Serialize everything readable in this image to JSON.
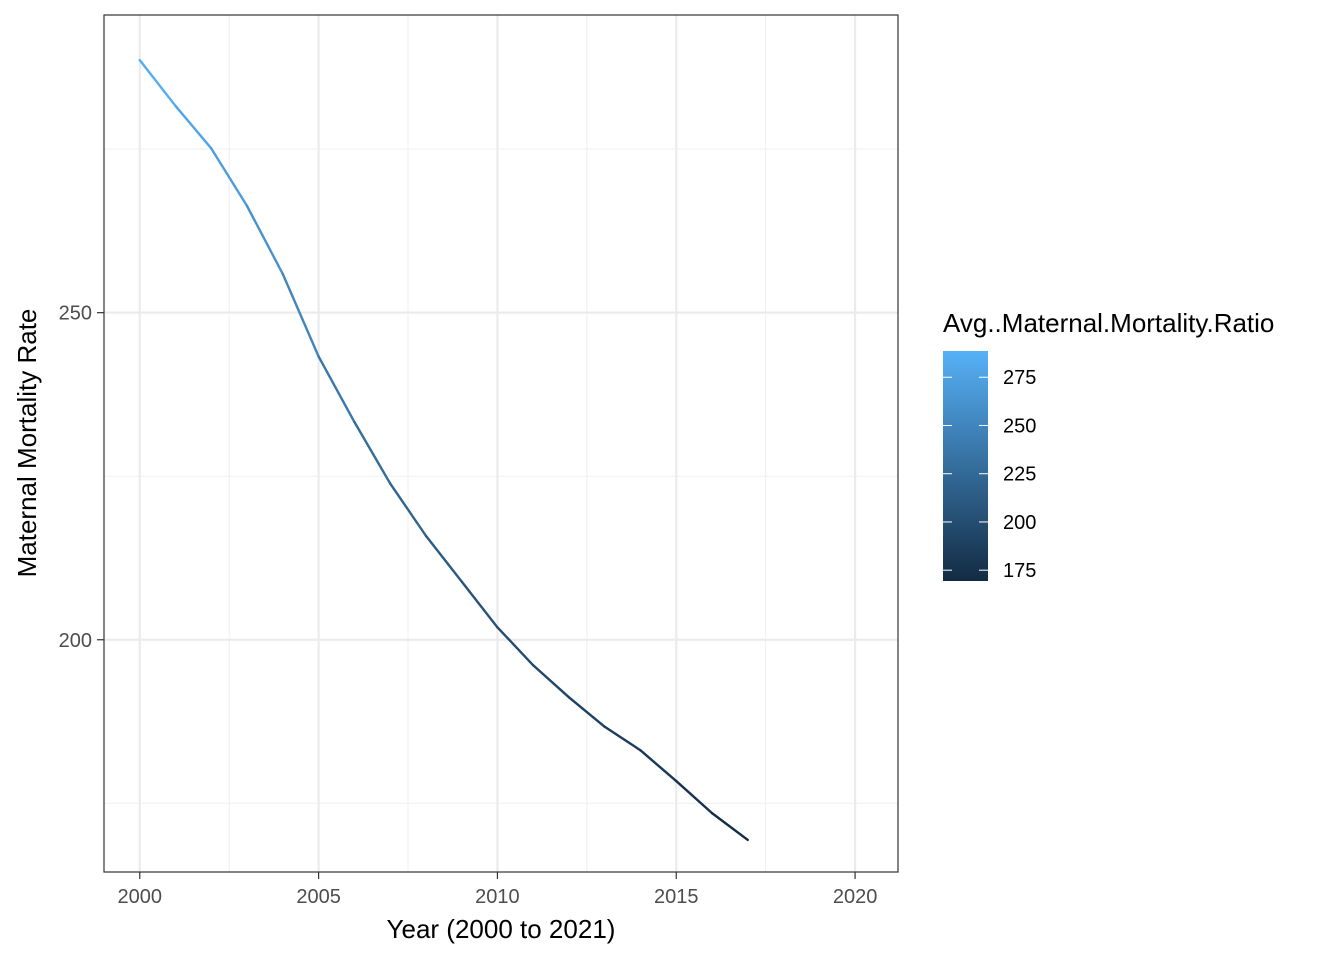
{
  "chart_data": {
    "type": "line",
    "xlabel": "Year (2000 to 2021)",
    "ylabel": "Maternal Mortality Rate",
    "xlim": [
      1999,
      2021.2
    ],
    "ylim": [
      164.5,
      295.5
    ],
    "x_ticks": [
      2000,
      2005,
      2010,
      2015,
      2020
    ],
    "x_tick_labels": [
      "2000",
      "2005",
      "2010",
      "2015",
      "2020"
    ],
    "y_ticks": [
      200,
      250
    ],
    "y_tick_labels": [
      "200",
      "250"
    ],
    "grid": true,
    "series": [
      {
        "x": [
          2000,
          2001,
          2002,
          2003,
          2004,
          2005,
          2006,
          2007,
          2008,
          2009,
          2010,
          2011,
          2012,
          2013,
          2014,
          2015,
          2016,
          2017
        ],
        "values": [
          288.6,
          281.6,
          275.1,
          266.3,
          255.9,
          243.3,
          233.3,
          223.9,
          215.9,
          208.9,
          201.9,
          196.1,
          191.2,
          186.7,
          183.1,
          178.4,
          173.5,
          169.4
        ]
      }
    ],
    "legend": {
      "title": "Avg..Maternal.Mortality.Ratio",
      "placement": "right",
      "type": "colorbar",
      "range": [
        169.4,
        288.6
      ],
      "breaks": [
        275,
        250,
        225,
        200,
        175
      ],
      "break_labels": [
        "275",
        "250",
        "225",
        "200",
        "175"
      ],
      "low_color": "#132B43",
      "high_color": "#56B1F7"
    }
  }
}
